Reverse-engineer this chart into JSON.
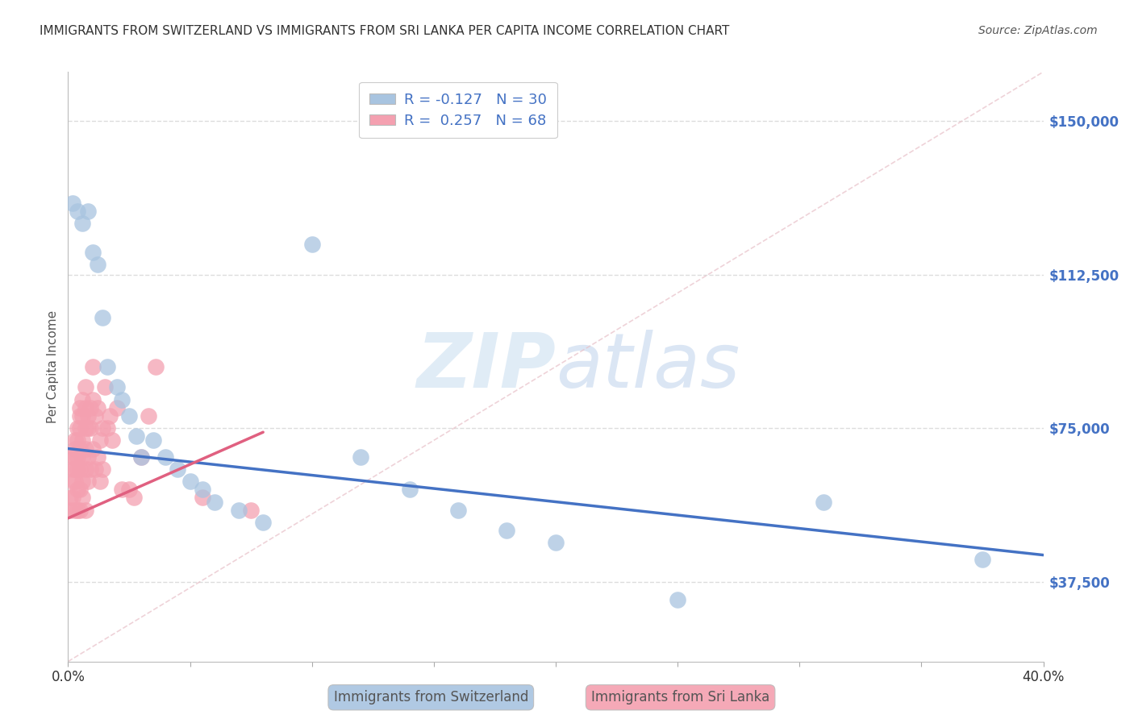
{
  "title": "IMMIGRANTS FROM SWITZERLAND VS IMMIGRANTS FROM SRI LANKA PER CAPITA INCOME CORRELATION CHART",
  "source": "Source: ZipAtlas.com",
  "ylabel": "Per Capita Income",
  "yticks": [
    37500,
    75000,
    112500,
    150000
  ],
  "ytick_labels": [
    "$37,500",
    "$75,000",
    "$112,500",
    "$150,000"
  ],
  "xlim": [
    0.0,
    0.4
  ],
  "ylim": [
    18000,
    162000
  ],
  "color_swiss": "#a8c4e0",
  "color_srilanka": "#f4a0b0",
  "line_color_swiss": "#4472c4",
  "line_color_srilanka": "#e06080",
  "background_color": "#ffffff",
  "watermark_zip": "ZIP",
  "watermark_atlas": "atlas",
  "title_fontsize": 11,
  "swiss_points_x": [
    0.002,
    0.004,
    0.006,
    0.008,
    0.01,
    0.012,
    0.014,
    0.016,
    0.02,
    0.022,
    0.025,
    0.028,
    0.03,
    0.035,
    0.04,
    0.045,
    0.05,
    0.055,
    0.06,
    0.07,
    0.08,
    0.1,
    0.12,
    0.14,
    0.16,
    0.18,
    0.2,
    0.25,
    0.31,
    0.375
  ],
  "swiss_points_y": [
    130000,
    128000,
    125000,
    128000,
    118000,
    115000,
    102000,
    90000,
    85000,
    82000,
    78000,
    73000,
    68000,
    72000,
    68000,
    65000,
    62000,
    60000,
    57000,
    55000,
    52000,
    120000,
    68000,
    60000,
    55000,
    50000,
    47000,
    33000,
    57000,
    43000
  ],
  "srilanka_points_x": [
    0.001,
    0.001,
    0.002,
    0.002,
    0.002,
    0.002,
    0.003,
    0.003,
    0.003,
    0.003,
    0.003,
    0.003,
    0.004,
    0.004,
    0.004,
    0.004,
    0.004,
    0.004,
    0.005,
    0.005,
    0.005,
    0.005,
    0.005,
    0.005,
    0.005,
    0.006,
    0.006,
    0.006,
    0.006,
    0.006,
    0.006,
    0.007,
    0.007,
    0.007,
    0.007,
    0.007,
    0.007,
    0.008,
    0.008,
    0.008,
    0.008,
    0.009,
    0.009,
    0.009,
    0.01,
    0.01,
    0.01,
    0.011,
    0.011,
    0.012,
    0.012,
    0.013,
    0.013,
    0.014,
    0.014,
    0.015,
    0.016,
    0.017,
    0.018,
    0.02,
    0.022,
    0.025,
    0.027,
    0.03,
    0.033,
    0.036,
    0.055,
    0.075
  ],
  "srilanka_points_y": [
    58000,
    55000,
    68000,
    65000,
    62000,
    58000,
    72000,
    70000,
    68000,
    65000,
    62000,
    55000,
    75000,
    72000,
    68000,
    65000,
    60000,
    55000,
    80000,
    78000,
    75000,
    70000,
    65000,
    60000,
    55000,
    82000,
    78000,
    72000,
    68000,
    62000,
    58000,
    85000,
    80000,
    75000,
    70000,
    65000,
    55000,
    78000,
    75000,
    68000,
    62000,
    80000,
    75000,
    65000,
    90000,
    82000,
    70000,
    78000,
    65000,
    80000,
    68000,
    72000,
    62000,
    75000,
    65000,
    85000,
    75000,
    78000,
    72000,
    80000,
    60000,
    60000,
    58000,
    68000,
    78000,
    90000,
    58000,
    55000
  ],
  "swiss_line_x0": 0.0,
  "swiss_line_y0": 70000,
  "swiss_line_x1": 0.4,
  "swiss_line_y1": 44000,
  "srilanka_line_x0": 0.0,
  "srilanka_line_y0": 53000,
  "srilanka_line_x1": 0.08,
  "srilanka_line_y1": 74000,
  "dashed_line_x": [
    0.0,
    0.4
  ],
  "dashed_line_y": [
    18000,
    162000
  ]
}
